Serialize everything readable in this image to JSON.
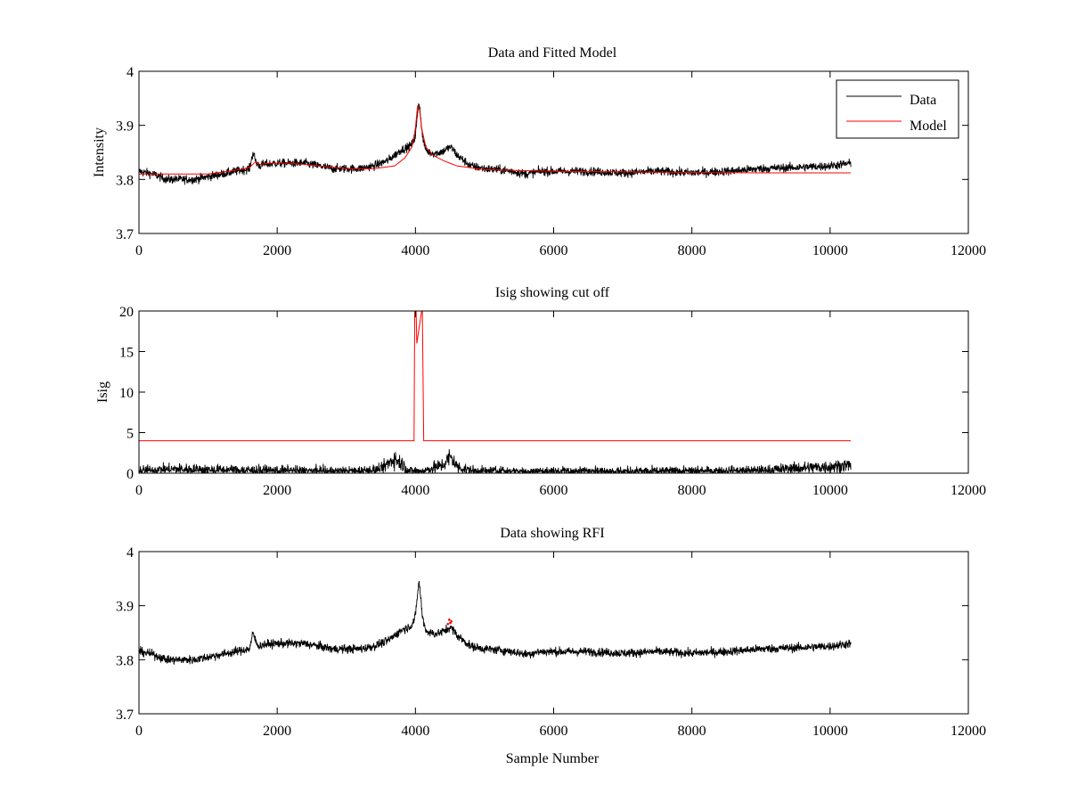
{
  "figure": {
    "background": "#ffffff",
    "data_color": "#000000",
    "model_color": "#ff0000",
    "xlabel": "Sample Number"
  },
  "chart_data": [
    {
      "type": "line",
      "title": "Data and Fitted Model",
      "xlabel": "",
      "ylabel": "Intensity",
      "xlim": [
        0,
        12000
      ],
      "ylim": [
        3.7,
        4.0
      ],
      "xticks": [
        0,
        2000,
        4000,
        6000,
        8000,
        10000,
        12000
      ],
      "xtick_labels": [
        "0",
        "2000",
        "4000",
        "6000",
        "8000",
        "10000",
        "12000"
      ],
      "yticks": [
        3.7,
        3.8,
        3.9,
        4.0
      ],
      "ytick_labels": [
        "3.7",
        "3.8",
        "3.9",
        "4"
      ],
      "legend": {
        "placement": "top-right",
        "entries": [
          "Data",
          "Model"
        ]
      },
      "series": [
        {
          "name": "Data",
          "color": "#000000",
          "kind": "noisy",
          "noise": 0.008,
          "x": [
            0,
            200,
            400,
            600,
            800,
            1000,
            1200,
            1400,
            1600,
            1650,
            1700,
            1750,
            1800,
            2000,
            2200,
            2400,
            2600,
            2800,
            3000,
            3200,
            3400,
            3600,
            3700,
            3800,
            3900,
            3950,
            4000,
            4030,
            4050,
            4070,
            4100,
            4150,
            4200,
            4300,
            4400,
            4500,
            4550,
            4600,
            4700,
            4800,
            5000,
            5200,
            5400,
            5600,
            5800,
            6000,
            6500,
            7000,
            7500,
            8000,
            8500,
            9000,
            9500,
            10000,
            10300
          ],
          "y": [
            3.815,
            3.81,
            3.8,
            3.8,
            3.8,
            3.805,
            3.81,
            3.815,
            3.82,
            3.85,
            3.83,
            3.825,
            3.828,
            3.83,
            3.83,
            3.83,
            3.825,
            3.82,
            3.82,
            3.82,
            3.825,
            3.835,
            3.845,
            3.855,
            3.86,
            3.865,
            3.88,
            3.92,
            3.945,
            3.925,
            3.88,
            3.855,
            3.85,
            3.848,
            3.852,
            3.86,
            3.855,
            3.845,
            3.835,
            3.825,
            3.82,
            3.818,
            3.815,
            3.81,
            3.815,
            3.815,
            3.815,
            3.812,
            3.815,
            3.812,
            3.815,
            3.82,
            3.822,
            3.825,
            3.83
          ]
        },
        {
          "name": "Model",
          "color": "#ff0000",
          "kind": "smooth",
          "x": [
            0,
            500,
            1000,
            1400,
            1600,
            1680,
            1750,
            1900,
            2200,
            2600,
            3000,
            3400,
            3700,
            3850,
            3950,
            4000,
            4030,
            4060,
            4090,
            4150,
            4250,
            4400,
            4600,
            5000,
            6000,
            7000,
            8000,
            9000,
            10300
          ],
          "y": [
            3.81,
            3.81,
            3.81,
            3.817,
            3.822,
            3.832,
            3.828,
            3.83,
            3.83,
            3.825,
            3.82,
            3.82,
            3.825,
            3.84,
            3.86,
            3.895,
            3.935,
            3.93,
            3.895,
            3.86,
            3.845,
            3.835,
            3.825,
            3.818,
            3.815,
            3.814,
            3.813,
            3.812,
            3.812
          ]
        }
      ]
    },
    {
      "type": "line",
      "title": "Isig showing cut off",
      "xlabel": "",
      "ylabel": "Isig",
      "xlim": [
        0,
        12000
      ],
      "ylim": [
        0,
        20
      ],
      "xticks": [
        0,
        2000,
        4000,
        6000,
        8000,
        10000,
        12000
      ],
      "xtick_labels": [
        "0",
        "2000",
        "4000",
        "6000",
        "8000",
        "10000",
        "12000"
      ],
      "yticks": [
        0,
        5,
        10,
        15,
        20
      ],
      "ytick_labels": [
        "0",
        "5",
        "10",
        "15",
        "20"
      ],
      "series": [
        {
          "name": "Isig",
          "color": "#000000",
          "kind": "noise_abs",
          "noise": 0.9,
          "x": [
            0,
            500,
            1000,
            2000,
            3000,
            3500,
            3600,
            3700,
            3800,
            3900,
            4000,
            4100,
            4200,
            4400,
            4500,
            4550,
            4600,
            4800,
            5000,
            6000,
            7000,
            8000,
            9000,
            9500,
            10000,
            10300
          ],
          "y": [
            0.3,
            0.5,
            0.4,
            0.3,
            0.2,
            0.4,
            1.2,
            1.8,
            1.2,
            0.3,
            0.2,
            0.2,
            0.5,
            1.0,
            2.0,
            1.6,
            0.8,
            0.3,
            0.2,
            0.2,
            0.2,
            0.2,
            0.3,
            0.6,
            0.8,
            1.0
          ]
        },
        {
          "name": "Cut off",
          "color": "#ff0000",
          "kind": "line",
          "x": [
            0,
            3980,
            3990,
            4010,
            4020,
            4090,
            4100,
            4110,
            4120,
            4130,
            10300
          ],
          "y": [
            4,
            4,
            20,
            20,
            16,
            20,
            20,
            12,
            4,
            4,
            4
          ]
        }
      ]
    },
    {
      "type": "line",
      "title": "Data showing RFI",
      "xlabel": "Sample Number",
      "ylabel": "",
      "xlim": [
        0,
        12000
      ],
      "ylim": [
        3.7,
        4.0
      ],
      "xticks": [
        0,
        2000,
        4000,
        6000,
        8000,
        10000,
        12000
      ],
      "xtick_labels": [
        "0",
        "2000",
        "4000",
        "6000",
        "8000",
        "10000",
        "12000"
      ],
      "yticks": [
        3.7,
        3.8,
        3.9,
        4.0
      ],
      "ytick_labels": [
        "3.7",
        "3.8",
        "3.9",
        "4"
      ],
      "series": [
        {
          "name": "Data",
          "color": "#000000",
          "kind": "noisy",
          "noise": 0.008,
          "x": [
            0,
            200,
            400,
            600,
            800,
            1000,
            1200,
            1400,
            1600,
            1650,
            1700,
            1750,
            1800,
            2000,
            2200,
            2400,
            2600,
            2800,
            3000,
            3200,
            3400,
            3600,
            3700,
            3800,
            3900,
            3950,
            4000,
            4030,
            4050,
            4070,
            4100,
            4150,
            4200,
            4300,
            4400,
            4500,
            4550,
            4600,
            4700,
            4800,
            5000,
            5200,
            5400,
            5600,
            5800,
            6000,
            6500,
            7000,
            7500,
            8000,
            8500,
            9000,
            9500,
            10000,
            10300
          ],
          "y": [
            3.815,
            3.81,
            3.8,
            3.8,
            3.8,
            3.805,
            3.81,
            3.815,
            3.82,
            3.85,
            3.83,
            3.825,
            3.828,
            3.83,
            3.83,
            3.83,
            3.825,
            3.82,
            3.82,
            3.82,
            3.825,
            3.835,
            3.845,
            3.855,
            3.86,
            3.865,
            3.88,
            3.92,
            3.945,
            3.925,
            3.88,
            3.855,
            3.85,
            3.848,
            3.852,
            3.86,
            3.855,
            3.845,
            3.835,
            3.825,
            3.82,
            3.818,
            3.815,
            3.81,
            3.815,
            3.815,
            3.815,
            3.812,
            3.815,
            3.812,
            3.815,
            3.82,
            3.822,
            3.825,
            3.83
          ]
        },
        {
          "name": "RFI",
          "color": "#ff0000",
          "kind": "points",
          "x": [
            4470,
            4490,
            4505,
            4520
          ],
          "y": [
            3.866,
            3.874,
            3.868,
            3.871
          ]
        }
      ]
    }
  ]
}
